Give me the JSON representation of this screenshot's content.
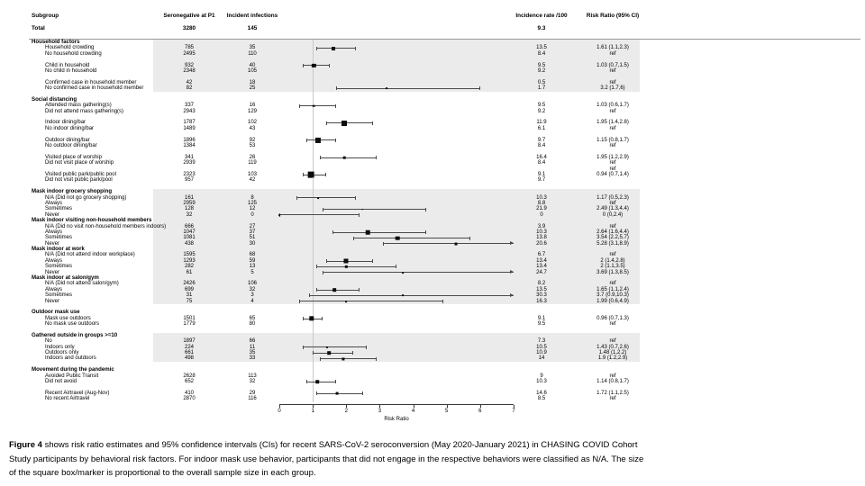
{
  "header": {
    "subgroup": "Subgroup",
    "n1": "Seronegative at P1",
    "n2": "Incident infections",
    "rate": "Incidence rate /100",
    "rr": "Risk Ratio (95% CI)"
  },
  "total": {
    "label": "Total",
    "n1": "3280",
    "n2": "145",
    "rate": "9.3",
    "rr": ""
  },
  "axis": {
    "label": "Risk Ratio",
    "ticks": [
      "0",
      "1",
      "2",
      "3",
      "4",
      "5",
      "6",
      "7"
    ],
    "max": 7,
    "refline": 1
  },
  "caption": {
    "tag": "Figure 4",
    "text": " shows risk ratio estimates and 95% confidence intervals (CIs) for recent SARS-CoV-2 seroconversion (May 2020-January 2021) in CHASING COVID Cohort Study participants by behavioral risk factors. For indoor mask use behavior, participants that did not engage in the respective behaviors were classified as N/A. The size of the square box/marker is proportional to the overall sample size in each group."
  },
  "chart_data": {
    "type": "scatter",
    "subtype": "forest-plot",
    "title": "",
    "xlabel": "Risk Ratio",
    "xlim": [
      0,
      7
    ],
    "refline": 1,
    "grid": false,
    "note": "est/lo/hi are risk ratio point estimate and 95% CI; clip=1 means CI extends beyond axis max (arrow); marker size proportional to subgroup sample size n1",
    "rows": [
      {
        "t": "s",
        "label": "Household factors",
        "shaded": true
      },
      {
        "t": "d",
        "label": "Household crowding",
        "n1": "785",
        "n2": "35",
        "rate": "13.5",
        "rr": "1.61 (1.1,2.3)",
        "est": 1.61,
        "lo": 1.1,
        "hi": 2.3,
        "shaded": true
      },
      {
        "t": "d",
        "label": "No household crowding",
        "n1": "2495",
        "n2": "110",
        "rate": "8.4",
        "rr": "ref",
        "shaded": true
      },
      {
        "t": "g",
        "shaded": true
      },
      {
        "t": "d",
        "label": "Child in household",
        "n1": "932",
        "n2": "40",
        "rate": "9.5",
        "rr": "1.03 (0.7,1.5)",
        "est": 1.03,
        "lo": 0.7,
        "hi": 1.5,
        "shaded": true
      },
      {
        "t": "d",
        "label": "No child in household",
        "n1": "2348",
        "n2": "105",
        "rate": "9.2",
        "rr": "ref",
        "shaded": true
      },
      {
        "t": "g",
        "shaded": true
      },
      {
        "t": "d",
        "label": "Confirmed case in household member",
        "n1": "42",
        "n2": "18",
        "rate": "0.5",
        "rr": "ref",
        "shaded": true
      },
      {
        "t": "d",
        "label": "No confirmed case in household member",
        "n1": "82",
        "n2": "25",
        "rate": "1.7",
        "rr": "3.2 (1.7,6)",
        "est": 3.2,
        "lo": 1.7,
        "hi": 6,
        "shaded": true
      },
      {
        "t": "g"
      },
      {
        "t": "s",
        "label": "Social distancing"
      },
      {
        "t": "d",
        "label": "Attended mass gathering(s)",
        "n1": "337",
        "n2": "16",
        "rate": "9.5",
        "rr": "1.03 (0.6,1.7)",
        "est": 1.03,
        "lo": 0.6,
        "hi": 1.7
      },
      {
        "t": "d",
        "label": "Did not attend mass gathering(s)",
        "n1": "2943",
        "n2": "129",
        "rate": "9.2",
        "rr": "ref"
      },
      {
        "t": "g"
      },
      {
        "t": "d",
        "label": "Indoor dining/bar",
        "n1": "1787",
        "n2": "102",
        "rate": "11.9",
        "rr": "1.95 (1.4,2.8)",
        "est": 1.95,
        "lo": 1.4,
        "hi": 2.8
      },
      {
        "t": "d",
        "label": "No indoor dining/bar",
        "n1": "1489",
        "n2": "43",
        "rate": "6.1",
        "rr": "ref"
      },
      {
        "t": "g"
      },
      {
        "t": "d",
        "label": "Outdoor dining/bar",
        "n1": "1896",
        "n2": "92",
        "rate": "9.7",
        "rr": "1.15 (0.8,1.7)",
        "est": 1.15,
        "lo": 0.8,
        "hi": 1.7
      },
      {
        "t": "d",
        "label": "No outdoor dining/bar",
        "n1": "1384",
        "n2": "53",
        "rate": "8.4",
        "rr": "ref"
      },
      {
        "t": "g"
      },
      {
        "t": "d",
        "label": "Visited place of worship",
        "n1": "341",
        "n2": "26",
        "rate": "16.4",
        "rr": "1.95 (1.2,2.9)",
        "est": 1.95,
        "lo": 1.2,
        "hi": 2.9
      },
      {
        "t": "d",
        "label": "Did not visit place of worship",
        "n1": "2939",
        "n2": "119",
        "rate": "8.4",
        "rr": "ref"
      },
      {
        "t": "g",
        "rr": "ref"
      },
      {
        "t": "d",
        "label": "Visited public park/public pool",
        "n1": "2323",
        "n2": "103",
        "rate": "9.1",
        "rr": "0.94 (0.7,1.4)",
        "est": 0.94,
        "lo": 0.7,
        "hi": 1.4
      },
      {
        "t": "d",
        "label": "Did not visit public park/pool",
        "n1": "957",
        "n2": "42",
        "rate": "9.7",
        "rr": ""
      },
      {
        "t": "g"
      },
      {
        "t": "s",
        "label": "Mask indoor grocery shopping",
        "shaded": true
      },
      {
        "t": "d",
        "label": "N/A (Did not go grocery shopping)",
        "n1": "161",
        "n2": "8",
        "rate": "10.3",
        "rr": "1.17 (0.5,2.3)",
        "est": 1.17,
        "lo": 0.5,
        "hi": 2.3,
        "shaded": true
      },
      {
        "t": "d",
        "label": "Always",
        "n1": "2959",
        "n2": "125",
        "rate": "8.8",
        "rr": "ref",
        "shaded": true
      },
      {
        "t": "d",
        "label": "Sometimes",
        "n1": "128",
        "n2": "12",
        "rate": "21.9",
        "rr": "2.49 (1.3,4.4)",
        "est": 2.49,
        "lo": 1.3,
        "hi": 4.4,
        "shaded": true
      },
      {
        "t": "d",
        "label": "Never",
        "n1": "32",
        "n2": "0",
        "rate": "0",
        "rr": "0 (0,2.4)",
        "est": 0,
        "lo": 0,
        "hi": 2.4,
        "shaded": true
      },
      {
        "t": "s",
        "label": "Mask indoor visiting non-household members",
        "shaded": true
      },
      {
        "t": "d",
        "label": "N/A (Did no visit non-household members indoors)",
        "n1": "666",
        "n2": "27",
        "rate": "3.9",
        "rr": "ref",
        "shaded": true
      },
      {
        "t": "d",
        "label": "Always",
        "n1": "1047",
        "n2": "37",
        "rate": "10.3",
        "rr": "2.64 (1.6,4.4)",
        "est": 2.64,
        "lo": 1.6,
        "hi": 4.4,
        "shaded": true
      },
      {
        "t": "d",
        "label": "Sometimes",
        "n1": "1081",
        "n2": "51",
        "rate": "13.8",
        "rr": "3.54 (2.2,5.7)",
        "est": 3.54,
        "lo": 2.2,
        "hi": 5.7,
        "shaded": true
      },
      {
        "t": "d",
        "label": "Never",
        "n1": "438",
        "n2": "30",
        "rate": "20.6",
        "rr": "5.28 (3.1,8.9)",
        "est": 5.28,
        "lo": 3.1,
        "hi": 8.9,
        "clip": 1,
        "shaded": true
      },
      {
        "t": "s",
        "label": "Mask indoor at work",
        "shaded": true
      },
      {
        "t": "d",
        "label": "N/A (Did not attend indoor workplace)",
        "n1": "1595",
        "n2": "68",
        "rate": "6.7",
        "rr": "ref",
        "shaded": true
      },
      {
        "t": "d",
        "label": "Always",
        "n1": "1293",
        "n2": "59",
        "rate": "13.4",
        "rr": "2 (1.4,2.8)",
        "est": 2,
        "lo": 1.4,
        "hi": 2.8,
        "shaded": true
      },
      {
        "t": "d",
        "label": "Sometimes",
        "n1": "282",
        "n2": "13",
        "rate": "13.4",
        "rr": "2 (1.1,3.5)",
        "est": 2,
        "lo": 1.1,
        "hi": 3.5,
        "shaded": true
      },
      {
        "t": "d",
        "label": "Never",
        "n1": "61",
        "n2": "5",
        "rate": "24.7",
        "rr": "3.69 (1.3,8.5)",
        "est": 3.69,
        "lo": 1.3,
        "hi": 8.5,
        "clip": 1,
        "shaded": true
      },
      {
        "t": "s",
        "label": "Mask indoor at salon/gym",
        "shaded": true
      },
      {
        "t": "d",
        "label": "N/A (Did not attend salon/gym)",
        "n1": "2426",
        "n2": "106",
        "rate": "8.2",
        "rr": "ref",
        "shaded": true
      },
      {
        "t": "d",
        "label": "Always",
        "n1": "699",
        "n2": "32",
        "rate": "13.5",
        "rr": "1.65 (1.1,2.4)",
        "est": 1.65,
        "lo": 1.1,
        "hi": 2.4,
        "shaded": true
      },
      {
        "t": "d",
        "label": "Sometimes",
        "n1": "31",
        "n2": "3",
        "rate": "30.3",
        "rr": "3.7 (0.9,10.3)",
        "est": 3.7,
        "lo": 0.9,
        "hi": 10.3,
        "clip": 1,
        "shaded": true
      },
      {
        "t": "d",
        "label": "Never",
        "n1": "75",
        "n2": "4",
        "rate": "16.3",
        "rr": "1.99 (0.6,4.9)",
        "est": 1.99,
        "lo": 0.6,
        "hi": 4.9,
        "shaded": true
      },
      {
        "t": "g"
      },
      {
        "t": "s",
        "label": "Outdoor mask use"
      },
      {
        "t": "d",
        "label": "Mask use outdoors",
        "n1": "1501",
        "n2": "65",
        "rate": "9.1",
        "rr": "0.96 (0.7,1.3)",
        "est": 0.96,
        "lo": 0.7,
        "hi": 1.3
      },
      {
        "t": "d",
        "label": "No mask use outdoors",
        "n1": "1779",
        "n2": "80",
        "rate": "9.5",
        "rr": "ref"
      },
      {
        "t": "g"
      },
      {
        "t": "s",
        "label": "Gathered outside in groups >=10",
        "shaded": true
      },
      {
        "t": "d",
        "label": "No",
        "n1": "1897",
        "n2": "66",
        "rate": "7.3",
        "rr": "ref",
        "shaded": true
      },
      {
        "t": "d",
        "label": "Indoors only",
        "n1": "224",
        "n2": "11",
        "rate": "10.5",
        "rr": "1.43 (0.7,2.6)",
        "est": 1.43,
        "lo": 0.7,
        "hi": 2.6,
        "shaded": true
      },
      {
        "t": "d",
        "label": "Outdoors only",
        "n1": "661",
        "n2": "35",
        "rate": "10.9",
        "rr": "1.48 (1,2.2)",
        "est": 1.48,
        "lo": 1,
        "hi": 2.2,
        "shaded": true
      },
      {
        "t": "d",
        "label": "Indoors and outdoors",
        "n1": "498",
        "n2": "33",
        "rate": "14",
        "rr": "1.9 (1.2,2.9)",
        "est": 1.9,
        "lo": 1.2,
        "hi": 2.9,
        "shaded": true
      },
      {
        "t": "g"
      },
      {
        "t": "s",
        "label": "Movement during the pandemic"
      },
      {
        "t": "d",
        "label": "Avoided Public Transit",
        "n1": "2628",
        "n2": "113",
        "rate": "9",
        "rr": "ref"
      },
      {
        "t": "d",
        "label": "Did not avoid",
        "n1": "652",
        "n2": "32",
        "rate": "10.3",
        "rr": "1.14 (0.8,1.7)",
        "est": 1.14,
        "lo": 0.8,
        "hi": 1.7
      },
      {
        "t": "g"
      },
      {
        "t": "d",
        "label": "Recent Airtravel (Aug-Nov)",
        "n1": "410",
        "n2": "29",
        "rate": "14.6",
        "rr": "1.72 (1.1,2.5)",
        "est": 1.72,
        "lo": 1.1,
        "hi": 2.5
      },
      {
        "t": "d",
        "label": "No recent Airtravel",
        "n1": "2870",
        "n2": "116",
        "rate": "8.5",
        "rr": "ref"
      }
    ]
  }
}
